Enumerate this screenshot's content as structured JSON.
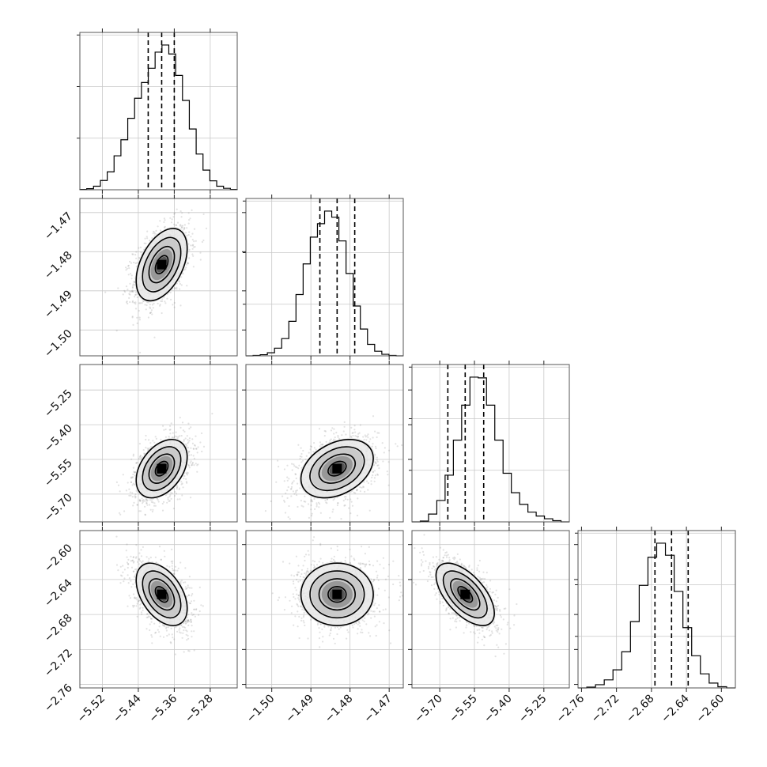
{
  "chart_data": {
    "type": "corner",
    "parameters": [
      {
        "range": [
          -5.57,
          -5.22
        ],
        "median": -5.388,
        "quantiles": [
          -5.418,
          -5.388,
          -5.36
        ],
        "sigma": 0.027,
        "ticks": [
          "-5.52",
          "-5.44",
          "-5.36",
          "-5.28"
        ],
        "tick_values": [
          -5.52,
          -5.44,
          -5.36,
          -5.28
        ]
      },
      {
        "range": [
          -1.5066,
          -1.4664
        ],
        "median": -1.4833,
        "quantiles": [
          -1.4877,
          -1.4833,
          -1.4788
        ],
        "sigma": 0.0044,
        "ticks": [
          "-1.50",
          "-1.49",
          "-1.48",
          "-1.47"
        ],
        "tick_values": [
          -1.5,
          -1.49,
          -1.48,
          -1.47
        ]
      },
      {
        "range": [
          -5.82,
          -5.14
        ],
        "median": -5.59,
        "quantiles": [
          -5.665,
          -5.59,
          -5.51
        ],
        "sigma": 0.06,
        "ticks": [
          "-5.70",
          "-5.55",
          "-5.40",
          "-5.25"
        ],
        "tick_values": [
          -5.7,
          -5.55,
          -5.4,
          -5.25
        ]
      },
      {
        "range": [
          -2.764,
          -2.584
        ],
        "median": -2.657,
        "quantiles": [
          -2.676,
          -2.657,
          -2.638
        ],
        "sigma": 0.017,
        "ticks": [
          "-2.76",
          "-2.72",
          "-2.68",
          "-2.64",
          "-2.60"
        ],
        "tick_values": [
          -2.76,
          -2.72,
          -2.68,
          -2.64,
          -2.6
        ]
      }
    ],
    "correlations": [
      [
        1,
        0.45,
        0.4,
        -0.45
      ],
      [
        0.45,
        1,
        0.35,
        0.0
      ],
      [
        0.4,
        0.35,
        1,
        -0.6
      ],
      [
        -0.45,
        0.0,
        -0.6,
        1
      ]
    ],
    "histogram_counts": [
      [
        1,
        3,
        10,
        26,
        50,
        95,
        140,
        200,
        256,
        300,
        340,
        385,
        405,
        380,
        320,
        250,
        170,
        100,
        55,
        25,
        10,
        4,
        1
      ],
      [
        0,
        1,
        3,
        8,
        20,
        45,
        90,
        160,
        240,
        310,
        345,
        378,
        362,
        300,
        215,
        130,
        70,
        30,
        12,
        4,
        1,
        0
      ],
      [
        0,
        2,
        20,
        55,
        120,
        210,
        300,
        372,
        370,
        300,
        210,
        125,
        75,
        45,
        25,
        15,
        8,
        3,
        0
      ],
      [
        0,
        2,
        8,
        20,
        45,
        90,
        165,
        255,
        325,
        360,
        330,
        240,
        150,
        80,
        35,
        12,
        3,
        0
      ]
    ],
    "contour_levels_sigma": [
      0.5,
      1.0,
      1.5,
      2.0
    ],
    "grid": true,
    "xlabel": "",
    "ylabel": ""
  }
}
